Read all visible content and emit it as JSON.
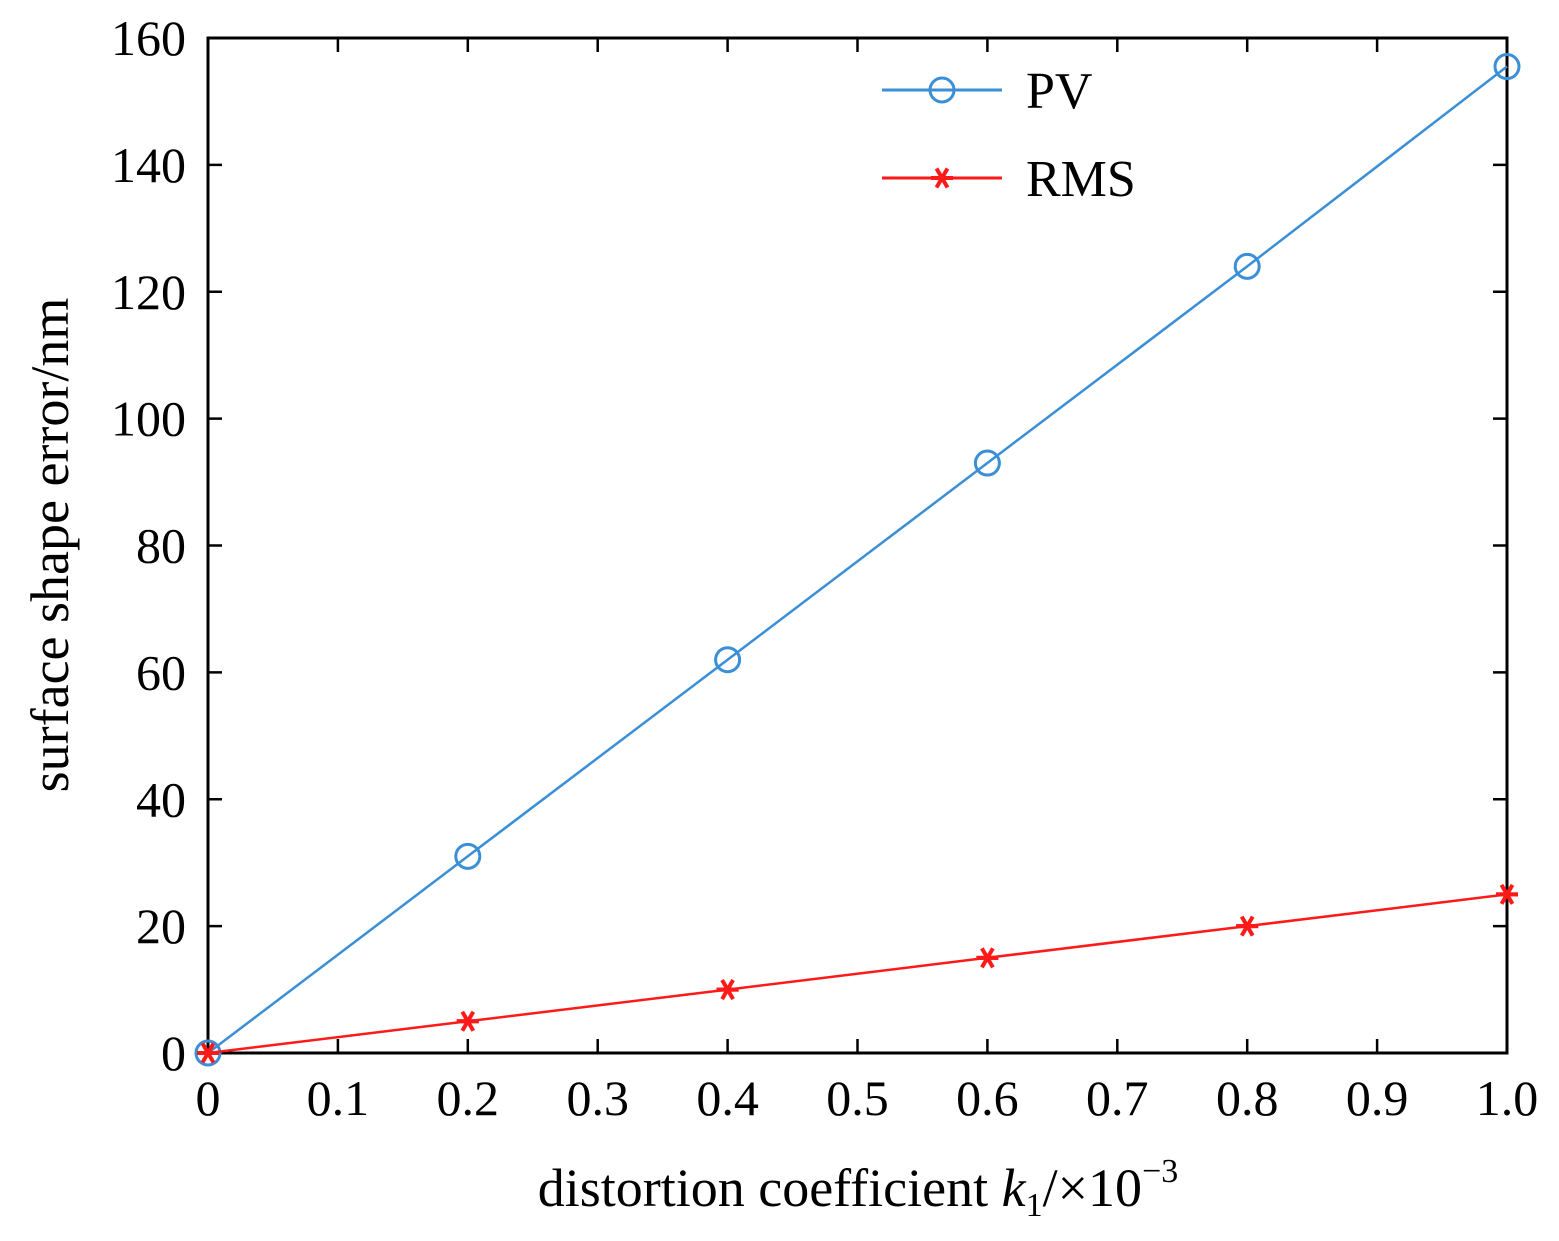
{
  "chart_data": {
    "type": "line",
    "xlabel_parts": {
      "prefix": "distortion coefficient ",
      "var": "k",
      "sub": "1",
      "suffix": "/×10",
      "sup": "−3"
    },
    "ylabel": "surface shape error/nm",
    "xlim": [
      0,
      1.0
    ],
    "ylim": [
      0,
      160
    ],
    "xticks": [
      "0",
      "0.1",
      "0.2",
      "0.3",
      "0.4",
      "0.5",
      "0.6",
      "0.7",
      "0.8",
      "0.9",
      "1.0"
    ],
    "yticks": [
      "0",
      "20",
      "40",
      "60",
      "80",
      "100",
      "120",
      "140",
      "160"
    ],
    "x": [
      0,
      0.2,
      0.4,
      0.6,
      0.8,
      1.0
    ],
    "series": [
      {
        "name": "PV",
        "marker": "circle",
        "color": "#3a8fd6",
        "values": [
          0,
          31,
          62,
          93,
          124,
          155.5
        ]
      },
      {
        "name": "RMS",
        "marker": "asterisk",
        "color": "#ff1a1a",
        "values": [
          0,
          5,
          10,
          15,
          20,
          25
        ]
      }
    ],
    "legend_position": "top-right",
    "grid": false
  }
}
